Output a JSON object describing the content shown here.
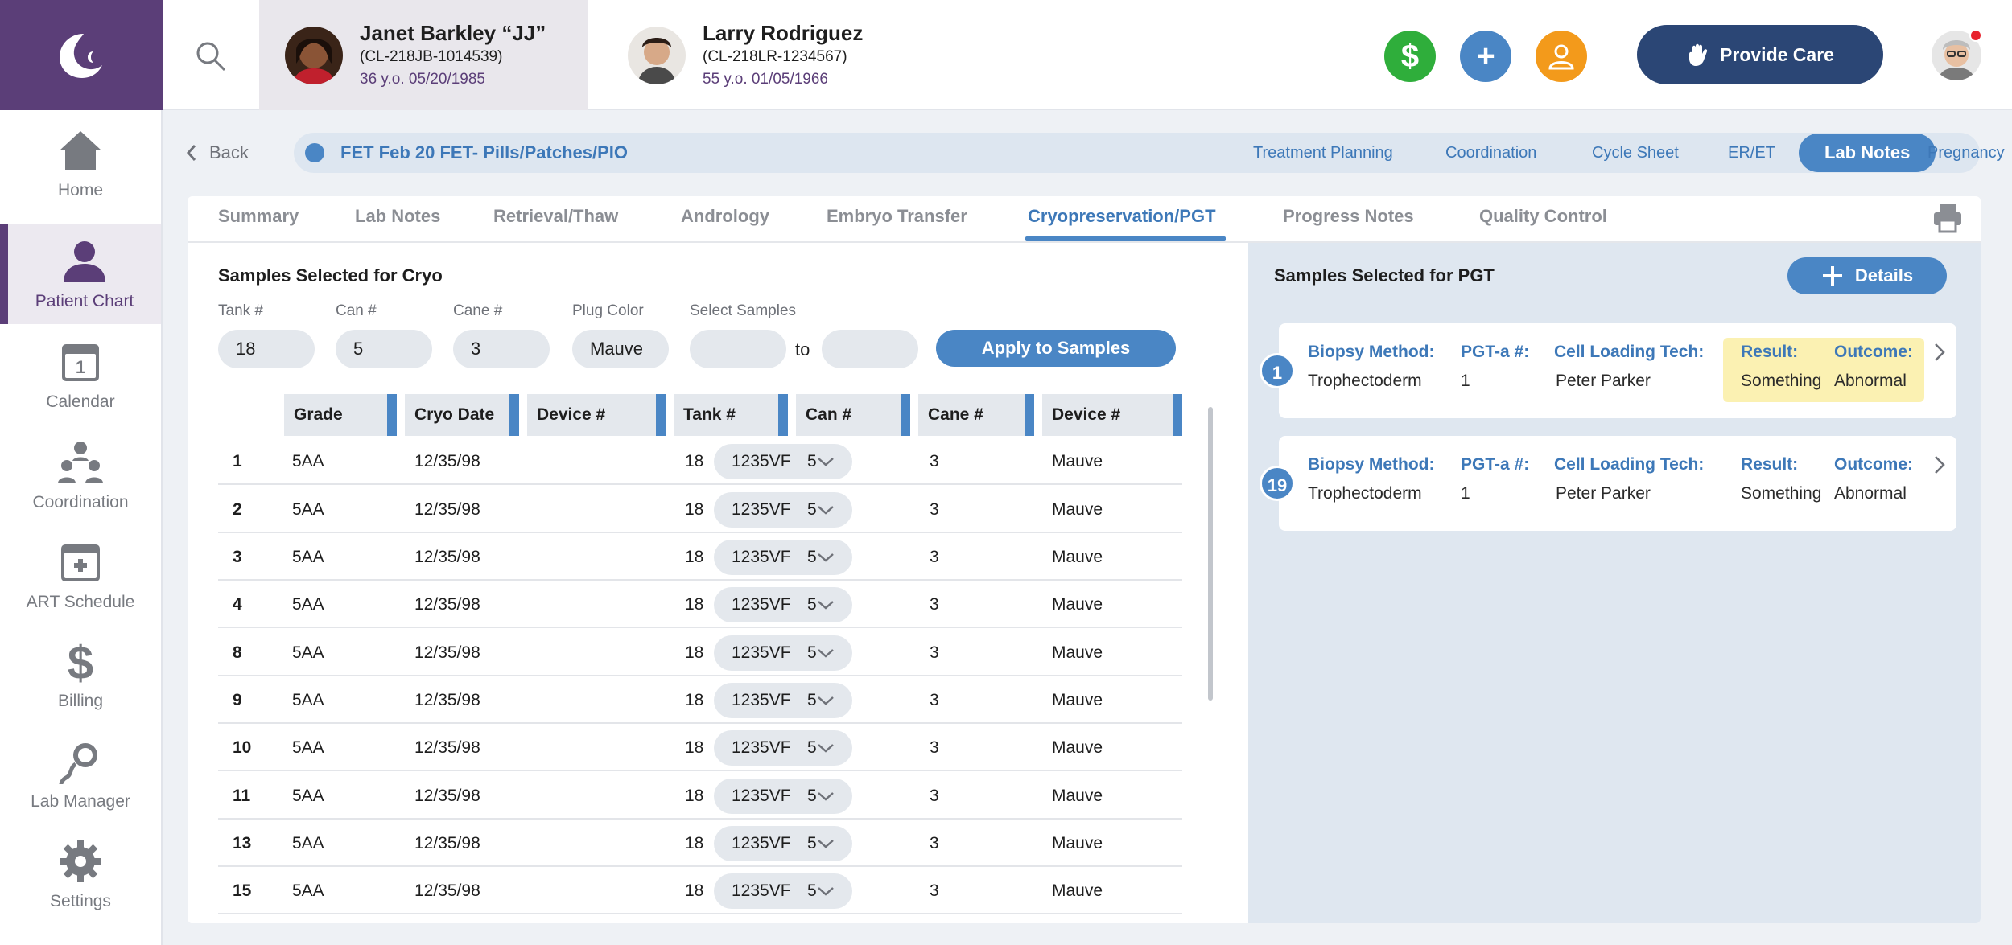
{
  "nav": {
    "items": [
      {
        "label": "Home",
        "icon": "home-icon"
      },
      {
        "label": "Patient Chart",
        "icon": "patient-icon"
      },
      {
        "label": "Calendar",
        "icon": "calendar-icon",
        "badge": "1"
      },
      {
        "label": "Coordination",
        "icon": "coordination-icon"
      },
      {
        "label": "ART Schedule",
        "icon": "medical-calendar-icon"
      },
      {
        "label": "Billing",
        "icon": "dollar-icon"
      },
      {
        "label": "Lab Manager",
        "icon": "sperm-icon"
      },
      {
        "label": "Settings",
        "icon": "gear-icon"
      }
    ],
    "active": "Patient Chart"
  },
  "header": {
    "patient1": {
      "name": "Janet Barkley “JJ”",
      "id": "(CL-218JB-1014539)",
      "meta": "36 y.o.  05/20/1985"
    },
    "patient2": {
      "name": "Larry Rodriguez",
      "id": "(CL-218LR-1234567)",
      "meta": "55 y.o.  01/05/1966"
    },
    "actions": {
      "billing": "$",
      "add": "+",
      "provide_care": "Provide Care"
    }
  },
  "cycle": {
    "back": "Back",
    "title": "FET Feb 20 FET- Pills/Patches/PIO",
    "tabs": [
      "Treatment Planning",
      "Coordination",
      "Cycle Sheet",
      "ER/ET",
      "Lab Notes",
      "Pregnancy"
    ],
    "active_tab": "Lab Notes"
  },
  "tabs": {
    "items": [
      "Summary",
      "Lab Notes",
      "Retrieval/Thaw",
      "Andrology",
      "Embryo Transfer",
      "Cryopreservation/PGT",
      "Progress Notes",
      "Quality Control"
    ],
    "active": "Cryopreservation/PGT"
  },
  "cryo": {
    "title": "Samples Selected for Cryo",
    "fields": {
      "tank": {
        "label": "Tank #",
        "value": "18"
      },
      "can": {
        "label": "Can #",
        "value": "5"
      },
      "cane": {
        "label": "Cane #",
        "value": "3"
      },
      "plug": {
        "label": "Plug Color",
        "value": "Mauve"
      },
      "select": {
        "label": "Select Samples",
        "from": "",
        "to_label": "to",
        "to": ""
      }
    },
    "apply": "Apply to Samples",
    "columns": [
      "Grade",
      "Cryo Date",
      "Device #",
      "Tank #",
      "Can #",
      "Cane #",
      "Device #"
    ],
    "rows": [
      {
        "num": "1",
        "grade": "5AA",
        "date": "12/35/98",
        "device": "1235VF",
        "tank": "18",
        "can": "5",
        "cane": "3",
        "plug": "Mauve"
      },
      {
        "num": "2",
        "grade": "5AA",
        "date": "12/35/98",
        "device": "1235VF",
        "tank": "18",
        "can": "5",
        "cane": "3",
        "plug": "Mauve"
      },
      {
        "num": "3",
        "grade": "5AA",
        "date": "12/35/98",
        "device": "1235VF",
        "tank": "18",
        "can": "5",
        "cane": "3",
        "plug": "Mauve"
      },
      {
        "num": "4",
        "grade": "5AA",
        "date": "12/35/98",
        "device": "1235VF",
        "tank": "18",
        "can": "5",
        "cane": "3",
        "plug": "Mauve"
      },
      {
        "num": "8",
        "grade": "5AA",
        "date": "12/35/98",
        "device": "1235VF",
        "tank": "18",
        "can": "5",
        "cane": "3",
        "plug": "Mauve"
      },
      {
        "num": "9",
        "grade": "5AA",
        "date": "12/35/98",
        "device": "1235VF",
        "tank": "18",
        "can": "5",
        "cane": "3",
        "plug": "Mauve"
      },
      {
        "num": "10",
        "grade": "5AA",
        "date": "12/35/98",
        "device": "1235VF",
        "tank": "18",
        "can": "5",
        "cane": "3",
        "plug": "Mauve"
      },
      {
        "num": "11",
        "grade": "5AA",
        "date": "12/35/98",
        "device": "1235VF",
        "tank": "18",
        "can": "5",
        "cane": "3",
        "plug": "Mauve"
      },
      {
        "num": "13",
        "grade": "5AA",
        "date": "12/35/98",
        "device": "1235VF",
        "tank": "18",
        "can": "5",
        "cane": "3",
        "plug": "Mauve"
      },
      {
        "num": "15",
        "grade": "5AA",
        "date": "12/35/98",
        "device": "1235VF",
        "tank": "18",
        "can": "5",
        "cane": "3",
        "plug": "Mauve"
      }
    ]
  },
  "pgt": {
    "title": "Samples Selected for PGT",
    "details": "Details",
    "labels": {
      "method": "Biopsy Method:",
      "pgt": "PGT-a #:",
      "tech": "Cell Loading Tech:",
      "result": "Result:",
      "outcome": "Outcome:"
    },
    "cards": [
      {
        "badge": "1",
        "method": "Trophectoderm",
        "pgt": "1",
        "tech": "Peter Parker",
        "result": "Something",
        "outcome": "Abnormal",
        "highlight": true
      },
      {
        "badge": "19",
        "method": "Trophectoderm",
        "pgt": "1",
        "tech": "Peter Parker",
        "result": "Something",
        "outcome": "Abnormal",
        "highlight": false
      }
    ]
  },
  "colors": {
    "brand": "#5b3e78",
    "accent": "#4a86c5",
    "navy": "#2b4675",
    "green": "#2fae3b",
    "orange": "#f39a1b",
    "highlight": "#fbf1b2"
  }
}
